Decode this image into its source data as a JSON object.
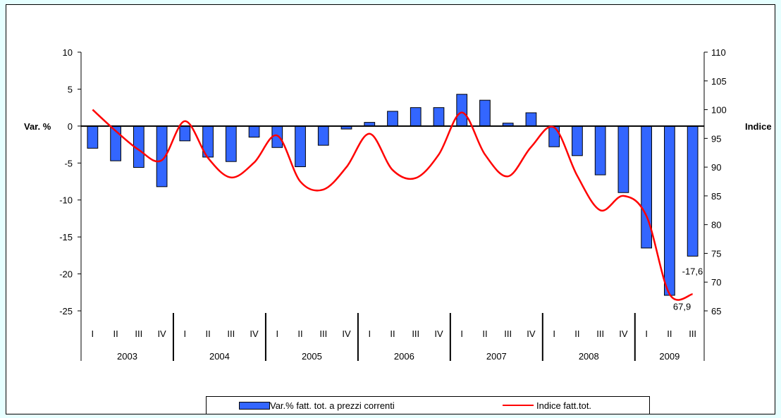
{
  "chart_data": {
    "type": "bar",
    "title": "",
    "ylabel_left": "Var. %",
    "ylabel_right": "Indice",
    "ylim_left": [
      -25,
      10
    ],
    "yticks_left": [
      "10",
      "5",
      "0",
      "-5",
      "-10",
      "-15",
      "-20",
      "-25"
    ],
    "ylim_right": [
      65,
      110
    ],
    "yticks_right": [
      "110",
      "105",
      "100",
      "95",
      "90",
      "85",
      "80",
      "75",
      "70",
      "65"
    ],
    "quarters": [
      "I",
      "II",
      "III",
      "IV",
      "I",
      "II",
      "III",
      "IV",
      "I",
      "II",
      "III",
      "IV",
      "I",
      "II",
      "III",
      "IV",
      "I",
      "II",
      "III",
      "IV",
      "I",
      "II",
      "III",
      "IV",
      "I",
      "II",
      "III"
    ],
    "years": [
      {
        "label": "2003",
        "quarters": 4
      },
      {
        "label": "2004",
        "quarters": 4
      },
      {
        "label": "2005",
        "quarters": 4
      },
      {
        "label": "2006",
        "quarters": 4
      },
      {
        "label": "2007",
        "quarters": 4
      },
      {
        "label": "2008",
        "quarters": 4
      },
      {
        "label": "2009",
        "quarters": 3
      }
    ],
    "series": [
      {
        "name": "Var.% fatt. tot. a prezzi correnti",
        "kind": "bar",
        "axis": "left",
        "color": "#3366ff",
        "values": [
          -3.0,
          -4.7,
          -5.6,
          -8.2,
          -2.0,
          -4.2,
          -4.8,
          -1.5,
          -2.9,
          -5.5,
          -2.6,
          -0.4,
          0.5,
          2.0,
          2.5,
          2.5,
          4.3,
          3.5,
          0.4,
          1.8,
          -2.8,
          -4.0,
          -6.6,
          -9.0,
          -16.5,
          -22.9,
          -17.6
        ],
        "labels": {
          "26": "-17,6"
        }
      },
      {
        "name": "Indice fatt.tot.",
        "kind": "line",
        "axis": "right",
        "color": "#ff0000",
        "values": [
          100.0,
          96.3,
          93.0,
          91.2,
          98.0,
          91.6,
          88.2,
          90.8,
          95.5,
          87.5,
          86.1,
          90.0,
          95.8,
          89.5,
          88.1,
          92.2,
          99.5,
          92.2,
          88.4,
          93.5,
          96.9,
          88.5,
          82.5,
          85.0,
          81.5,
          67.9,
          67.9
        ],
        "labels": {
          "25": "67,9"
        }
      }
    ],
    "grid": false,
    "legend": "bottom"
  }
}
